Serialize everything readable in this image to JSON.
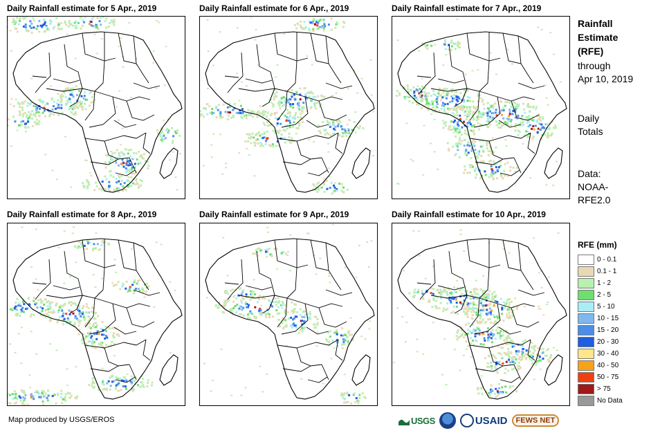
{
  "panels": [
    {
      "title": "Daily Rainfall estimate for 5 Apr., 2019"
    },
    {
      "title": "Daily Rainfall estimate for 6 Apr., 2019"
    },
    {
      "title": "Daily Rainfall estimate for 7 Apr., 2019"
    },
    {
      "title": "Daily Rainfall estimate for 8 Apr., 2019"
    },
    {
      "title": "Daily Rainfall estimate for 9 Apr., 2019"
    },
    {
      "title": "Daily Rainfall estimate for 10 Apr., 2019"
    }
  ],
  "side": {
    "title_lines": [
      "Rainfall",
      "Estimate",
      "(RFE)"
    ],
    "through": "through",
    "date": "Apr 10, 2019",
    "period_lines": [
      "Daily",
      "Totals"
    ],
    "data_lines": [
      "Data:",
      "NOAA-",
      "RFE2.0"
    ]
  },
  "legend": {
    "title": "RFE (mm)",
    "items": [
      {
        "label": "0 - 0.1",
        "color": "#ffffff"
      },
      {
        "label": "0.1 - 1",
        "color": "#e8d9b5"
      },
      {
        "label": "1 - 2",
        "color": "#b8f0b0"
      },
      {
        "label": "2 - 5",
        "color": "#6ede6e"
      },
      {
        "label": "5 - 10",
        "color": "#aaeef5"
      },
      {
        "label": "10 - 15",
        "color": "#7fb8f0"
      },
      {
        "label": "15 - 20",
        "color": "#4a8ee8"
      },
      {
        "label": "20 - 30",
        "color": "#1e5ee0"
      },
      {
        "label": "30 - 40",
        "color": "#ffe68a"
      },
      {
        "label": "40 - 50",
        "color": "#f7a21b"
      },
      {
        "label": "50 - 75",
        "color": "#f04010"
      },
      {
        "label": "> 75",
        "color": "#a01818"
      },
      {
        "label": "No Data",
        "color": "#999999"
      }
    ]
  },
  "footer": {
    "credit": "Map produced by USGS/EROS"
  },
  "logos": {
    "usgs": "USGS",
    "noaa": "NOAA",
    "usaid": "USAID",
    "fews": "FEWS NET"
  }
}
